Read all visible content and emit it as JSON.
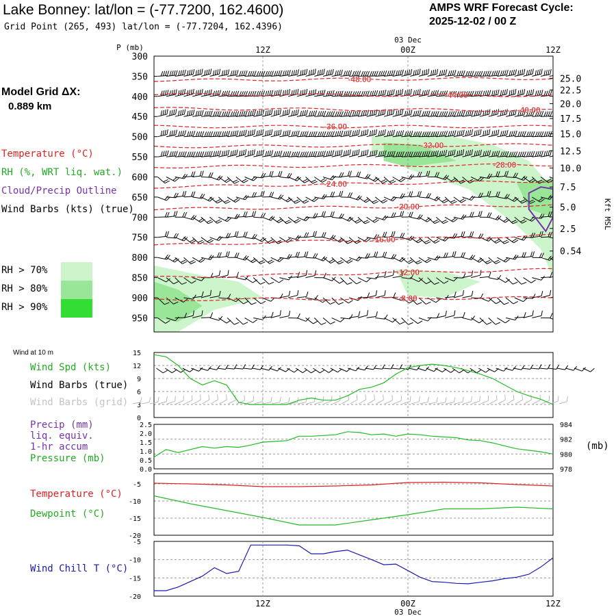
{
  "header": {
    "title": "Lake Bonney:  lat/lon = (-77.7200, 162.4600)",
    "grid_point": "Grid Point (265, 493) lat/lon = (-77.7204, 162.4396)",
    "cycle_label": "AMPS WRF Forecast Cycle:",
    "cycle_value": "2025-12-02 / 00  Z"
  },
  "time_axis": {
    "date_top": "03 Dec",
    "date_bottom": "03 Dec",
    "ticks": [
      "12Z",
      "00Z",
      "12Z"
    ],
    "tick_hours": [
      12,
      24,
      36
    ],
    "range_hours": [
      3,
      36
    ]
  },
  "model_grid": {
    "label": "Model Grid ΔX:",
    "value": "0.889 km"
  },
  "legend": {
    "temperature": "Temperature (°C)",
    "rh": "RH (%, WRT liq. wat.)",
    "cloud": "Cloud/Precip Outline",
    "wind": "Wind Barbs (kts) (true)",
    "rh_levels": [
      {
        "label": "RH > 70%",
        "color": "#ccf5cc"
      },
      {
        "label": "RH > 80%",
        "color": "#99e699"
      },
      {
        "label": "RH > 90%",
        "color": "#33dd33"
      }
    ]
  },
  "colors": {
    "temperature": "#dd2222",
    "rh_green": "#22bb22",
    "cloud": "#7733aa",
    "wind_chill": "#1a1aaa",
    "grid": "#999999",
    "wind_grid": "#bbbbbb"
  },
  "chart_data": [
    {
      "type": "area",
      "name": "upper-air-cross-section",
      "ylabel": "P (mb)",
      "y_left_ticks": [
        "300",
        "350",
        "400",
        "450",
        "500",
        "550",
        "600",
        "650",
        "700",
        "750",
        "800",
        "850",
        "900",
        "950"
      ],
      "y_left_values": [
        300,
        350,
        400,
        450,
        500,
        550,
        600,
        650,
        700,
        750,
        800,
        850,
        900,
        950
      ],
      "ylim": [
        300,
        985
      ],
      "y_right_label": "Kft MSL",
      "y_right_ticks": [
        {
          "label": "25.0",
          "p": 355
        },
        {
          "label": "22.5",
          "p": 384
        },
        {
          "label": "20.0",
          "p": 418
        },
        {
          "label": "17.5",
          "p": 455
        },
        {
          "label": "15.0",
          "p": 493
        },
        {
          "label": "12.5",
          "p": 535
        },
        {
          "label": "10.0",
          "p": 578
        },
        {
          "label": "7.5",
          "p": 625
        },
        {
          "label": "5.0",
          "p": 675
        },
        {
          "label": "2.5",
          "p": 728
        },
        {
          "label": "0.54",
          "p": 784
        }
      ],
      "isotherms": [
        {
          "label": "-48.00",
          "label_hour": 20,
          "pts": [
            [
              3,
              360
            ],
            [
              36,
              355
            ]
          ]
        },
        {
          "label": "-44.00",
          "label_hour": 28,
          "pts": [
            [
              3,
              395
            ],
            [
              36,
              398
            ]
          ]
        },
        {
          "label": "-40.00",
          "label_hour": 34,
          "pts": [
            [
              3,
              430
            ],
            [
              36,
              435
            ]
          ]
        },
        {
          "label": "-36.00",
          "label_hour": 18,
          "pts": [
            [
              3,
              475
            ],
            [
              36,
              475
            ]
          ]
        },
        {
          "label": "-32.00",
          "label_hour": 26,
          "pts": [
            [
              3,
              525
            ],
            [
              36,
              520
            ]
          ]
        },
        {
          "label": "-28.00",
          "label_hour": 32,
          "pts": [
            [
              3,
              575
            ],
            [
              36,
              570
            ]
          ]
        },
        {
          "label": "-24.00",
          "label_hour": 18,
          "pts": [
            [
              3,
              625
            ],
            [
              36,
              610
            ]
          ]
        },
        {
          "label": "-20.00",
          "label_hour": 24,
          "pts": [
            [
              3,
              680
            ],
            [
              36,
              670
            ]
          ]
        },
        {
          "label": "-16.00",
          "label_hour": 22,
          "pts": [
            [
              3,
              770
            ],
            [
              36,
              745
            ]
          ]
        },
        {
          "label": "-12.00",
          "label_hour": 24,
          "pts": [
            [
              3,
              850
            ],
            [
              36,
              830
            ]
          ]
        },
        {
          "label": "-8.00",
          "label_hour": 24,
          "pts": [
            [
              3,
              905
            ],
            [
              36,
              900
            ]
          ]
        }
      ],
      "rh_regions": [
        {
          "level": 70,
          "pts": [
            [
              3,
              820
            ],
            [
              7,
              845
            ],
            [
              10,
              860
            ],
            [
              12,
              900
            ],
            [
              8,
              930
            ],
            [
              5,
              985
            ],
            [
              3,
              985
            ]
          ]
        },
        {
          "level": 70,
          "pts": [
            [
              21,
              498
            ],
            [
              26,
              490
            ],
            [
              31,
              520
            ],
            [
              34,
              560
            ],
            [
              36,
              630
            ],
            [
              36,
              850
            ],
            [
              35,
              780
            ],
            [
              33,
              720
            ],
            [
              29,
              630
            ],
            [
              24,
              580
            ],
            [
              21,
              540
            ]
          ]
        },
        {
          "level": 70,
          "pts": [
            [
              23,
              830
            ],
            [
              27,
              835
            ],
            [
              30,
              860
            ],
            [
              27,
              900
            ],
            [
              24,
              895
            ]
          ]
        },
        {
          "level": 80,
          "pts": [
            [
              3,
              860
            ],
            [
              5,
              880
            ],
            [
              7,
              920
            ],
            [
              5,
              960
            ],
            [
              3,
              950
            ]
          ]
        },
        {
          "level": 80,
          "pts": [
            [
              22,
              515
            ],
            [
              25,
              520
            ],
            [
              28,
              560
            ],
            [
              24,
              575
            ],
            [
              22,
              560
            ]
          ]
        },
        {
          "level": 80,
          "pts": [
            [
              33,
              615
            ],
            [
              36,
              605
            ],
            [
              36,
              700
            ],
            [
              34,
              680
            ]
          ]
        }
      ],
      "cloud_outline": [
        [
          34,
          640
        ],
        [
          35,
          625
        ],
        [
          36,
          630
        ],
        [
          36,
          700
        ],
        [
          35.4,
          735
        ],
        [
          34,
          680
        ]
      ],
      "wind_rows": [
        350,
        400,
        450,
        500,
        550,
        600,
        650,
        700,
        750,
        800,
        850,
        900,
        950
      ]
    },
    {
      "type": "line",
      "name": "wind-10m",
      "title": "Wind at 10 m",
      "labels": [
        "Wind Spd (kts)",
        "Wind Barbs (true)",
        "Wind Barbs (grid)"
      ],
      "y_ticks": [
        "15",
        "12",
        "9",
        "6",
        "3",
        "0"
      ],
      "ylim": [
        0,
        15
      ],
      "x": [
        3,
        4,
        5,
        6,
        7,
        8,
        9,
        10,
        11,
        12,
        13,
        14,
        15,
        16,
        17,
        18,
        19,
        20,
        21,
        22,
        23,
        24,
        25,
        26,
        27,
        28,
        29,
        30,
        31,
        32,
        33,
        34,
        35,
        36
      ],
      "values": [
        14.5,
        14,
        12,
        9,
        7.5,
        8.5,
        7.5,
        3.5,
        3,
        3,
        3,
        3,
        4,
        4.5,
        4,
        4,
        5,
        6.5,
        7,
        8,
        10,
        11.5,
        12,
        12.3,
        12,
        11.5,
        10.8,
        10,
        9,
        7.5,
        6,
        5,
        4.2,
        3
      ]
    },
    {
      "type": "line",
      "name": "precip-pressure",
      "labels": [
        "Precip (mm)",
        "liq. equiv.",
        "1-hr accum",
        "Pressure (mb)"
      ],
      "y_left_ticks": [
        "2.5",
        "2.0",
        "1.5",
        "1.0",
        "0.5",
        "0.0"
      ],
      "ylim_left": [
        0,
        2.5
      ],
      "y_right_ticks": [
        "984",
        "982",
        "980",
        "978"
      ],
      "ylim_right": [
        978,
        984
      ],
      "y_right_unit": "(mb)",
      "x": [
        3,
        4,
        5,
        6,
        7,
        8,
        9,
        10,
        11,
        12,
        13,
        14,
        15,
        16,
        17,
        18,
        19,
        20,
        21,
        22,
        23,
        24,
        25,
        26,
        27,
        28,
        29,
        30,
        31,
        32,
        33,
        34,
        35,
        36
      ],
      "pressure": [
        979.6,
        980.6,
        980.2,
        980.6,
        981.0,
        980.8,
        981.0,
        980.9,
        981.2,
        981.6,
        981.7,
        981.8,
        982.4,
        982.4,
        982.5,
        982.6,
        983.0,
        982.9,
        982.6,
        982.7,
        982.4,
        982.7,
        982.6,
        982.4,
        982.3,
        982.2,
        981.9,
        981.8,
        981.5,
        981.1,
        980.7,
        980.5,
        980.3,
        980.0
      ]
    },
    {
      "type": "line",
      "name": "temperature-dewpoint",
      "labels": [
        "Temperature (°C)",
        "Dewpoint (°C)"
      ],
      "y_ticks": [
        "-5",
        "-10",
        "-15",
        "-20"
      ],
      "ylim": [
        -20,
        -2
      ],
      "x": [
        3,
        6,
        9,
        12,
        15,
        18,
        21,
        24,
        27,
        30,
        33,
        36
      ],
      "series": [
        {
          "name": "Temperature",
          "color": "#dd2222",
          "values": [
            -4.8,
            -5.0,
            -5.3,
            -5.8,
            -5.8,
            -5.6,
            -5.3,
            -4.6,
            -4.5,
            -4.7,
            -5.2,
            -5.6
          ]
        },
        {
          "name": "Dewpoint",
          "color": "#22bb22",
          "values": [
            -8.5,
            -10.8,
            -12.8,
            -14.8,
            -17.0,
            -17.0,
            -15.5,
            -14.0,
            -12.3,
            -12.3,
            -11.8,
            -12.3
          ]
        }
      ]
    },
    {
      "type": "line",
      "name": "wind-chill",
      "labels": [
        "Wind Chill T (°C)"
      ],
      "y_ticks": [
        "-5",
        "-10",
        "-15",
        "-20"
      ],
      "ylim": [
        -20,
        -5
      ],
      "x": [
        3,
        4,
        5,
        6,
        7,
        8,
        9,
        10,
        11,
        12,
        13,
        14,
        15,
        16,
        17,
        18,
        19,
        20,
        21,
        22,
        23,
        24,
        25,
        26,
        27,
        28,
        29,
        30,
        31,
        32,
        33,
        34,
        35,
        36
      ],
      "values": [
        -18.5,
        -18.5,
        -17.5,
        -16,
        -14.5,
        -12.2,
        -13.8,
        -13.2,
        -6.0,
        -6.0,
        -6.0,
        -6.0,
        -6.2,
        -8.4,
        -8.4,
        -7.8,
        -7.4,
        -8.7,
        -10.0,
        -11.4,
        -11.2,
        -13.0,
        -14.8,
        -16.0,
        -16.2,
        -16.5,
        -16.6,
        -16.2,
        -15.8,
        -15.2,
        -14.8,
        -14.0,
        -12.0,
        -9.5
      ]
    }
  ]
}
